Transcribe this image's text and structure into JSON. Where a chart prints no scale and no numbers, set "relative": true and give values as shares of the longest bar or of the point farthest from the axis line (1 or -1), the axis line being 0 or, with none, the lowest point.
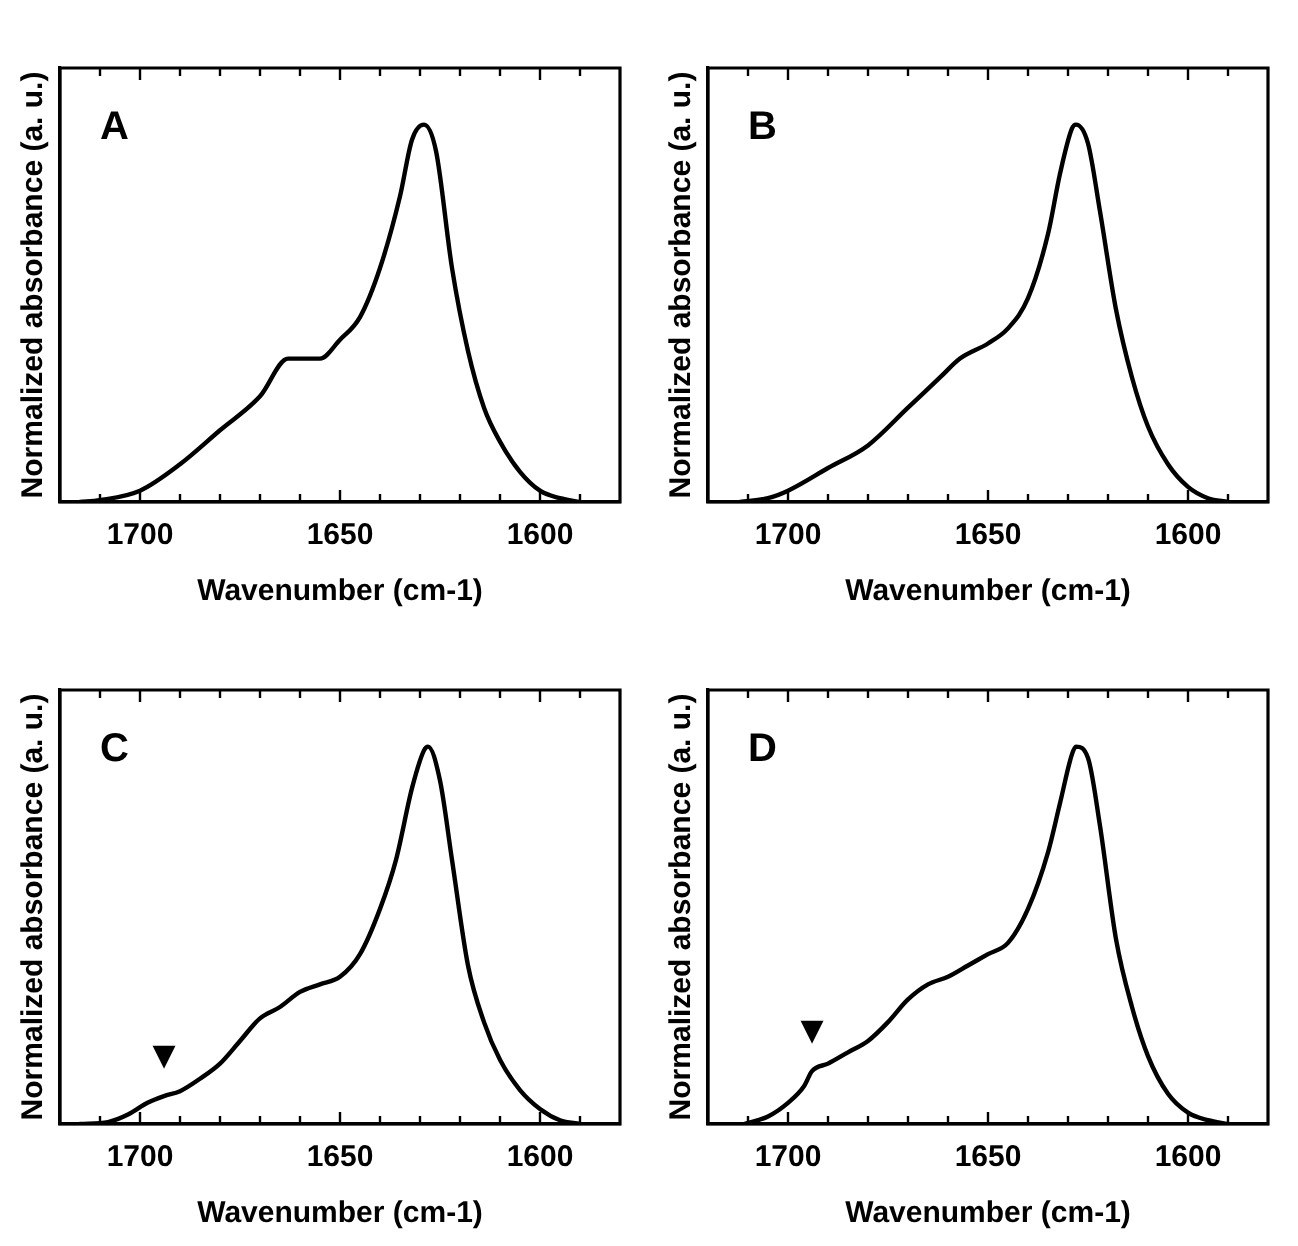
{
  "chart_data": [
    {
      "type": "line",
      "title": "A",
      "xlabel": "Wavenumber (cm-1)",
      "ylabel": "Normalized absorbance (a. u.)",
      "relative": true,
      "xlim": [
        1720,
        1580
      ],
      "xticks": [
        {
          "value": 1710,
          "label": null
        },
        1700,
        {
          "value": 1690,
          "label": null
        },
        {
          "value": 1680,
          "label": null
        },
        {
          "value": 1670,
          "label": null
        },
        {
          "value": 1660,
          "label": null
        },
        1650,
        {
          "value": 1640,
          "label": null
        },
        {
          "value": 1630,
          "label": null
        },
        {
          "value": 1620,
          "label": null
        },
        {
          "value": 1610,
          "label": null
        },
        1600,
        {
          "value": 1590,
          "label": null
        }
      ],
      "grid": false,
      "legend": false,
      "marker": "none",
      "line_style": "solid",
      "tick_labels": "x",
      "x": [
        1715,
        1710,
        1700,
        1690,
        1680,
        1670,
        1663,
        1655,
        1650,
        1645,
        1640,
        1635,
        1632,
        1629,
        1626,
        1622,
        1618,
        1614,
        1610,
        1605,
        1600,
        1595,
        1590
      ],
      "series": [
        {
          "color": "#000000",
          "values": [
            0,
            0.005,
            0.03,
            0.1,
            0.19,
            0.28,
            0.38,
            0.38,
            0.43,
            0.49,
            0.62,
            0.81,
            0.96,
            1,
            0.93,
            0.62,
            0.4,
            0.25,
            0.16,
            0.08,
            0.03,
            0.01,
            0
          ]
        }
      ]
    },
    {
      "type": "line",
      "title": "B",
      "xlabel": "Wavenumber (cm-1)",
      "ylabel": "Normalized absorbance (a. u.)",
      "relative": true,
      "xlim": [
        1720,
        1580
      ],
      "xticks": [
        {
          "value": 1710,
          "label": null
        },
        1700,
        {
          "value": 1690,
          "label": null
        },
        {
          "value": 1680,
          "label": null
        },
        {
          "value": 1670,
          "label": null
        },
        {
          "value": 1660,
          "label": null
        },
        1650,
        {
          "value": 1640,
          "label": null
        },
        {
          "value": 1630,
          "label": null
        },
        {
          "value": 1620,
          "label": null
        },
        {
          "value": 1610,
          "label": null
        },
        1600,
        {
          "value": 1590,
          "label": null
        }
      ],
      "grid": false,
      "legend": false,
      "marker": "none",
      "line_style": "solid",
      "tick_labels": "x",
      "x": [
        1712,
        1705,
        1700,
        1690,
        1680,
        1670,
        1662,
        1657,
        1650,
        1645,
        1640,
        1635,
        1632,
        1629,
        1628,
        1625,
        1622,
        1618,
        1614,
        1610,
        1605,
        1600,
        1595,
        1590
      ],
      "series": [
        {
          "color": "#000000",
          "values": [
            0,
            0.01,
            0.03,
            0.09,
            0.15,
            0.25,
            0.33,
            0.38,
            0.42,
            0.46,
            0.54,
            0.71,
            0.87,
            0.99,
            1,
            0.95,
            0.77,
            0.51,
            0.33,
            0.2,
            0.1,
            0.04,
            0.01,
            0
          ]
        }
      ]
    },
    {
      "type": "line",
      "title": "C",
      "xlabel": "Wavenumber (cm-1)",
      "ylabel": "Normalized absorbance (a. u.)",
      "relative": true,
      "xlim": [
        1720,
        1580
      ],
      "xticks": [
        {
          "value": 1710,
          "label": null
        },
        1700,
        {
          "value": 1690,
          "label": null
        },
        {
          "value": 1680,
          "label": null
        },
        {
          "value": 1670,
          "label": null
        },
        {
          "value": 1660,
          "label": null
        },
        1650,
        {
          "value": 1640,
          "label": null
        },
        {
          "value": 1630,
          "label": null
        },
        {
          "value": 1620,
          "label": null
        },
        {
          "value": 1610,
          "label": null
        },
        1600,
        {
          "value": 1590,
          "label": null
        }
      ],
      "grid": false,
      "legend": false,
      "marker": "none",
      "line_style": "solid",
      "tick_labels": "x",
      "annotations": [
        {
          "text": "▼",
          "x": 1694,
          "y": 0.074
        }
      ],
      "x": [
        1715,
        1708,
        1703,
        1698,
        1694,
        1690,
        1685,
        1680,
        1675,
        1670,
        1665,
        1660,
        1655,
        1650,
        1645,
        1640,
        1636,
        1632,
        1629,
        1628,
        1625,
        1622,
        1618,
        1614,
        1610,
        1605,
        1600,
        1595,
        1590
      ],
      "series": [
        {
          "color": "#000000",
          "values": [
            0,
            0.005,
            0.025,
            0.057,
            0.074,
            0.087,
            0.12,
            0.16,
            0.22,
            0.28,
            0.31,
            0.35,
            0.37,
            0.39,
            0.45,
            0.57,
            0.7,
            0.89,
            0.99,
            1,
            0.91,
            0.7,
            0.42,
            0.27,
            0.17,
            0.09,
            0.04,
            0.01,
            0
          ]
        }
      ]
    },
    {
      "type": "line",
      "title": "D",
      "xlabel": "Wavenumber (cm-1)",
      "ylabel": "Normalized absorbance (a. u.)",
      "relative": true,
      "xlim": [
        1720,
        1580
      ],
      "xticks": [
        {
          "value": 1710,
          "label": null
        },
        1700,
        {
          "value": 1690,
          "label": null
        },
        {
          "value": 1680,
          "label": null
        },
        {
          "value": 1670,
          "label": null
        },
        {
          "value": 1660,
          "label": null
        },
        1650,
        {
          "value": 1640,
          "label": null
        },
        {
          "value": 1630,
          "label": null
        },
        {
          "value": 1620,
          "label": null
        },
        {
          "value": 1610,
          "label": null
        },
        1600,
        {
          "value": 1590,
          "label": null
        }
      ],
      "grid": false,
      "legend": false,
      "marker": "none",
      "line_style": "solid",
      "tick_labels": "x",
      "annotations": [
        {
          "text": "▼",
          "x": 1694,
          "y": 0.14
        }
      ],
      "x": [
        1711,
        1705,
        1700,
        1696,
        1694,
        1690,
        1685,
        1680,
        1675,
        1670,
        1665,
        1660,
        1655,
        1650,
        1645,
        1640,
        1635,
        1632,
        1629,
        1628,
        1625,
        1622,
        1618,
        1614,
        1610,
        1605,
        1600,
        1595,
        1590
      ],
      "series": [
        {
          "color": "#000000",
          "values": [
            0,
            0.02,
            0.056,
            0.1,
            0.14,
            0.16,
            0.19,
            0.22,
            0.27,
            0.33,
            0.37,
            0.39,
            0.42,
            0.45,
            0.48,
            0.57,
            0.72,
            0.85,
            0.98,
            1,
            0.97,
            0.79,
            0.49,
            0.31,
            0.18,
            0.08,
            0.03,
            0.01,
            0
          ]
        }
      ]
    }
  ]
}
